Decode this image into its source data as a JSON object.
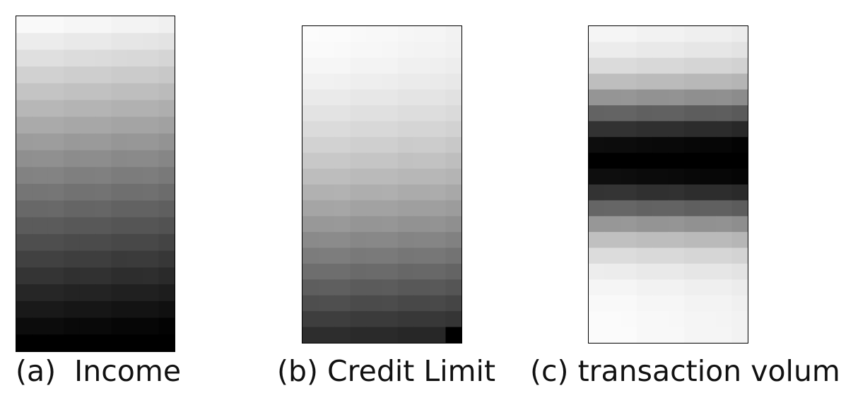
{
  "panels": [
    {
      "id": "a",
      "caption": "(a)  Income",
      "bands": 20,
      "columns": 10,
      "gray_start": 0.98,
      "gray_end": 0.0,
      "curve": "linear",
      "corner_black": false
    },
    {
      "id": "b",
      "caption": "(b) Credit Limit",
      "bands": 20,
      "columns": 10,
      "gray_start": 0.99,
      "gray_end": 0.18,
      "curve": "ease-in",
      "corner_black": true
    },
    {
      "id": "c",
      "caption": "(c) transaction volume",
      "bands": 20,
      "columns": 10,
      "gray_start": 0.99,
      "gray_end": 0.0,
      "curve": "valley",
      "corner_black": false
    }
  ]
}
